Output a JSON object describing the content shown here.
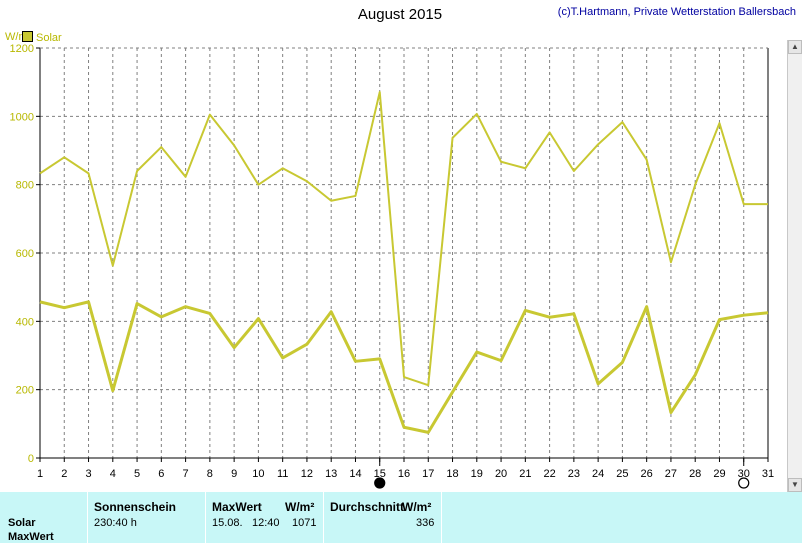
{
  "header": {
    "title": "August 2015",
    "credit": "(c)T.Hartmann, Private Wetterstation Ballersbach"
  },
  "legend": {
    "label": "Solar"
  },
  "axes": {
    "y_unit": "W/m²"
  },
  "colors": {
    "line": "#c8c832",
    "thick_line": "#c8c832",
    "grid": "#808080",
    "panel_bg": "#c8f7f7"
  },
  "chart_data": {
    "type": "line",
    "title": "August 2015",
    "x": [
      1,
      2,
      3,
      4,
      5,
      6,
      7,
      8,
      9,
      10,
      11,
      12,
      13,
      14,
      15,
      16,
      17,
      18,
      19,
      20,
      21,
      22,
      23,
      24,
      25,
      26,
      27,
      28,
      29,
      30,
      31
    ],
    "xlim": [
      1,
      31
    ],
    "ylim": [
      0,
      1200
    ],
    "yticks": [
      0,
      200,
      400,
      600,
      800,
      1000,
      1200
    ],
    "ylabel": "W/m²",
    "grid": true,
    "legend_position": "top-left",
    "series": [
      {
        "name": "Solar",
        "role": "max",
        "values": [
          833,
          880,
          833,
          563,
          840,
          910,
          823,
          1005,
          915,
          800,
          848,
          810,
          753,
          767,
          1071,
          237,
          213,
          937,
          1007,
          867,
          848,
          953,
          840,
          918,
          983,
          873,
          573,
          800,
          980,
          743,
          743
        ]
      },
      {
        "role": "average",
        "values": [
          457,
          440,
          457,
          197,
          452,
          413,
          443,
          423,
          323,
          408,
          293,
          333,
          428,
          283,
          290,
          90,
          75,
          193,
          310,
          285,
          432,
          412,
          422,
          217,
          280,
          443,
          133,
          243,
          405,
          418,
          425
        ]
      }
    ],
    "markers": [
      {
        "x": 15,
        "symbol": "filled-circle"
      },
      {
        "x": 30,
        "symbol": "open-circle"
      }
    ]
  },
  "summary": {
    "row_labels": [
      "Solar",
      "MaxWert"
    ],
    "sonnenschein": {
      "header": "Sonnenschein",
      "value": "230:40 h"
    },
    "maxwert": {
      "header": "MaxWert",
      "unit": "W/m²",
      "date": "15.08.",
      "time": "12:40",
      "value": "1071"
    },
    "durchschnitt": {
      "header": "Durchschnitt",
      "unit": "W/m²",
      "value": "336"
    }
  }
}
